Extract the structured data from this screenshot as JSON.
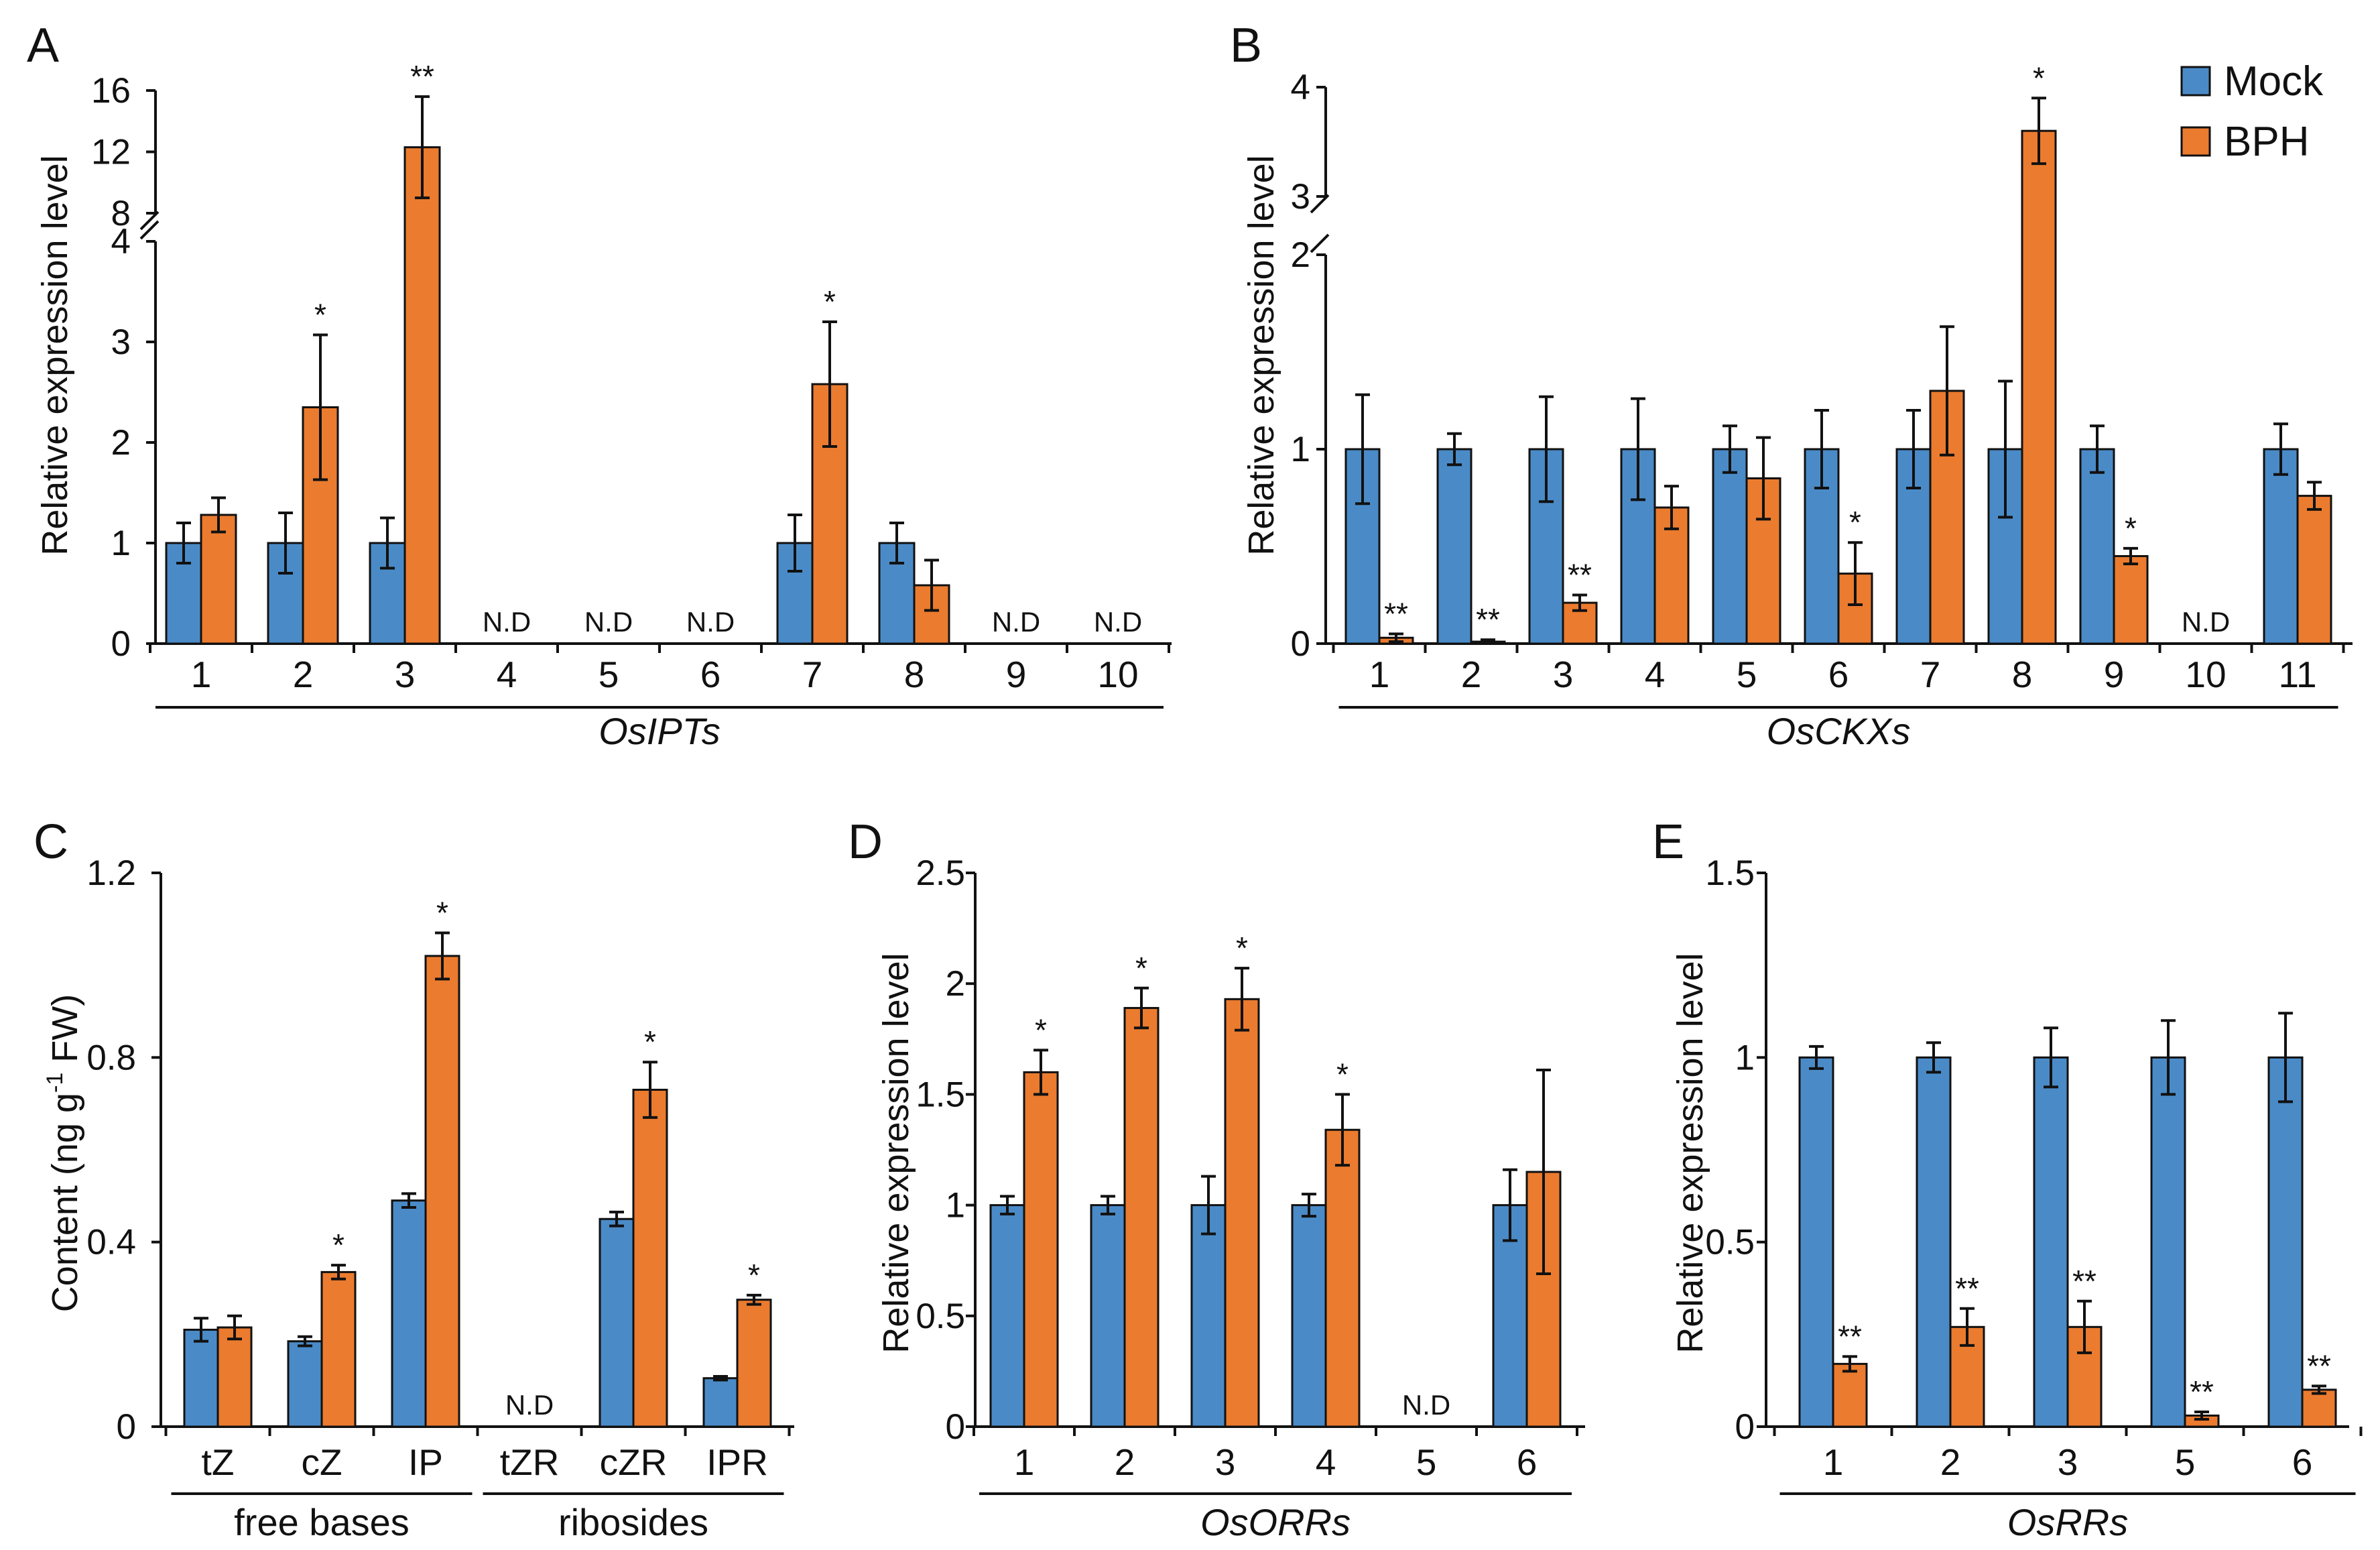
{
  "colors": {
    "mock": "#4A8BC7",
    "bph": "#EB7B2F"
  },
  "legend": {
    "mock": "Mock",
    "bph": "BPH"
  },
  "chart_data": [
    {
      "id": "A",
      "type": "bar",
      "letter": "A",
      "ylabel": "Relative expression level",
      "xlabel": "OsIPTs",
      "broken_axis": true,
      "ylim_lower": [
        0,
        4
      ],
      "ylim_upper": [
        8,
        16
      ],
      "yticks_lower": [
        "0",
        "1",
        "2",
        "3",
        "4"
      ],
      "yticks_upper": [
        "8",
        "12",
        "16"
      ],
      "categories": [
        "1",
        "2",
        "3",
        "4",
        "5",
        "6",
        "7",
        "8",
        "9",
        "10"
      ],
      "series": [
        {
          "name": "Mock",
          "values": [
            1,
            1,
            1,
            null,
            null,
            null,
            1,
            1,
            null,
            null
          ],
          "errors": [
            0.2,
            0.3,
            0.25,
            null,
            null,
            null,
            0.28,
            0.2,
            null,
            null
          ]
        },
        {
          "name": "BPH",
          "values": [
            1.28,
            2.35,
            12.3,
            null,
            null,
            null,
            2.58,
            0.58,
            null,
            null
          ],
          "errors": [
            0.17,
            0.72,
            3.3,
            null,
            null,
            null,
            0.62,
            0.25,
            null,
            null
          ]
        }
      ],
      "annotations": [
        "",
        "*",
        "**",
        "",
        "",
        "",
        "*",
        "",
        "",
        ""
      ],
      "nd": [
        "",
        "",
        "",
        "N.D",
        "N.D",
        "N.D",
        "",
        "",
        "N.D",
        "N.D"
      ]
    },
    {
      "id": "B",
      "type": "bar",
      "letter": "B",
      "ylabel": "Relative expression level",
      "xlabel": "OsCKXs",
      "broken_axis": true,
      "ylim_lower": [
        0,
        2
      ],
      "ylim_upper": [
        3,
        4
      ],
      "yticks_lower": [
        "0",
        "1",
        "2"
      ],
      "yticks_upper": [
        "3",
        "4"
      ],
      "categories": [
        "1",
        "2",
        "3",
        "4",
        "5",
        "6",
        "7",
        "8",
        "9",
        "10",
        "11"
      ],
      "series": [
        {
          "name": "Mock",
          "values": [
            1,
            1,
            1,
            1,
            1,
            1,
            1,
            1,
            1,
            null,
            1
          ],
          "errors": [
            0.28,
            0.08,
            0.27,
            0.26,
            0.12,
            0.2,
            0.2,
            0.35,
            0.12,
            null,
            0.13
          ]
        },
        {
          "name": "BPH",
          "values": [
            0.03,
            0.01,
            0.21,
            0.7,
            0.85,
            0.36,
            1.3,
            3.6,
            0.45,
            null,
            0.76
          ],
          "errors": [
            0.02,
            0.01,
            0.04,
            0.11,
            0.21,
            0.16,
            0.33,
            0.3,
            0.04,
            null,
            0.07
          ]
        }
      ],
      "annotations": [
        "**",
        "**",
        "**",
        "",
        "",
        "*",
        "",
        "*",
        "*",
        "",
        ""
      ],
      "nd": [
        "",
        "",
        "",
        "",
        "",
        "",
        "",
        "",
        "",
        "N.D",
        ""
      ]
    },
    {
      "id": "C",
      "type": "bar",
      "letter": "C",
      "ylabel": "Content (ng g-1 FW)",
      "ylabel_parts": [
        "Content (ng g",
        "-1",
        " FW)"
      ],
      "ylim": [
        0,
        1.2
      ],
      "yticks": [
        "0",
        "0.4",
        "0.8",
        "1.2"
      ],
      "ytick_values": [
        0,
        0.4,
        0.8,
        1.2
      ],
      "categories": [
        "tZ",
        "cZ",
        "IP",
        "tZR",
        "cZR",
        "IPR"
      ],
      "groups": [
        {
          "label": "free bases",
          "from": 0,
          "to": 2
        },
        {
          "label": "ribosides",
          "from": 3,
          "to": 5
        }
      ],
      "series": [
        {
          "name": "Mock",
          "values": [
            0.21,
            0.185,
            0.49,
            null,
            0.45,
            0.105
          ],
          "errors": [
            0.025,
            0.01,
            0.015,
            null,
            0.015,
            0.004
          ]
        },
        {
          "name": "BPH",
          "values": [
            0.215,
            0.335,
            1.02,
            null,
            0.73,
            0.275
          ],
          "errors": [
            0.025,
            0.015,
            0.05,
            null,
            0.06,
            0.01
          ]
        }
      ],
      "annotations": [
        "",
        "*",
        "*",
        "",
        "*",
        "*"
      ],
      "nd": [
        "",
        "",
        "",
        "N.D",
        "",
        ""
      ]
    },
    {
      "id": "D",
      "type": "bar",
      "letter": "D",
      "ylabel": "Relative expression level",
      "xlabel": "OsORRs",
      "ylim": [
        0,
        2.5
      ],
      "yticks": [
        "0",
        "0.5",
        "1",
        "1.5",
        "2",
        "2.5"
      ],
      "ytick_values": [
        0,
        0.5,
        1,
        1.5,
        2,
        2.5
      ],
      "categories": [
        "1",
        "2",
        "3",
        "4",
        "5",
        "6"
      ],
      "series": [
        {
          "name": "Mock",
          "values": [
            1,
            1,
            1,
            1,
            null,
            1
          ],
          "errors": [
            0.04,
            0.04,
            0.13,
            0.05,
            null,
            0.16
          ]
        },
        {
          "name": "BPH",
          "values": [
            1.6,
            1.89,
            1.93,
            1.34,
            null,
            1.15
          ],
          "errors": [
            0.1,
            0.09,
            0.14,
            0.16,
            null,
            0.46
          ]
        }
      ],
      "annotations": [
        "*",
        "*",
        "*",
        "*",
        "",
        ""
      ],
      "nd": [
        "",
        "",
        "",
        "",
        "N.D",
        ""
      ]
    },
    {
      "id": "E",
      "type": "bar",
      "letter": "E",
      "ylabel": "Relative expression level",
      "xlabel": "OsRRs",
      "ylim": [
        0,
        1.5
      ],
      "yticks": [
        "0",
        "0.5",
        "1",
        "1.5"
      ],
      "ytick_values": [
        0,
        0.5,
        1,
        1.5
      ],
      "categories": [
        "1",
        "2",
        "3",
        "5",
        "6"
      ],
      "series": [
        {
          "name": "Mock",
          "values": [
            1,
            1,
            1,
            1,
            1
          ],
          "errors": [
            0.03,
            0.04,
            0.08,
            0.1,
            0.12
          ]
        },
        {
          "name": "BPH",
          "values": [
            0.17,
            0.27,
            0.27,
            0.03,
            0.1
          ],
          "errors": [
            0.02,
            0.05,
            0.07,
            0.01,
            0.01
          ]
        }
      ],
      "annotations": [
        "**",
        "**",
        "**",
        "**",
        "**"
      ],
      "nd": [
        "",
        "",
        "",
        "",
        ""
      ]
    }
  ]
}
